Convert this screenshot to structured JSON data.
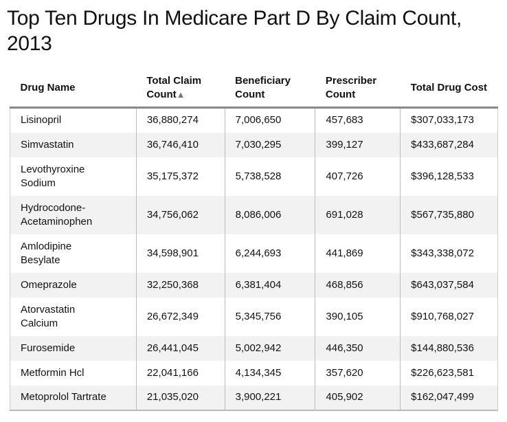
{
  "title": "Top Ten Drugs In Medicare Part D By Claim Count, 2013",
  "sort_indicator": "▲",
  "chart_data": {
    "type": "table",
    "title": "Top Ten Drugs In Medicare Part D By Claim Count, 2013",
    "columns": [
      "Drug Name",
      "Total Claim Count",
      "Beneficiary Count",
      "Prescriber Count",
      "Total Drug Cost"
    ],
    "sorted_column": "Total Claim Count",
    "rows": [
      {
        "drug": "Lisinopril",
        "claims": "36,880,274",
        "beneficiaries": "7,006,650",
        "prescribers": "457,683",
        "cost": "$307,033,173"
      },
      {
        "drug": "Simvastatin",
        "claims": "36,746,410",
        "beneficiaries": "7,030,295",
        "prescribers": "399,127",
        "cost": "$433,687,284"
      },
      {
        "drug": "Levothyroxine Sodium",
        "claims": "35,175,372",
        "beneficiaries": "5,738,528",
        "prescribers": "407,726",
        "cost": "$396,128,533"
      },
      {
        "drug": "Hydrocodone-Acetaminophen",
        "claims": "34,756,062",
        "beneficiaries": "8,086,006",
        "prescribers": "691,028",
        "cost": "$567,735,880"
      },
      {
        "drug": "Amlodipine Besylate",
        "claims": "34,598,901",
        "beneficiaries": "6,244,693",
        "prescribers": "441,869",
        "cost": "$343,338,072"
      },
      {
        "drug": "Omeprazole",
        "claims": "32,250,368",
        "beneficiaries": "6,381,404",
        "prescribers": "468,856",
        "cost": "$643,037,584"
      },
      {
        "drug": "Atorvastatin Calcium",
        "claims": "26,672,349",
        "beneficiaries": "5,345,756",
        "prescribers": "390,105",
        "cost": "$910,768,027"
      },
      {
        "drug": "Furosemide",
        "claims": "26,441,045",
        "beneficiaries": "5,002,942",
        "prescribers": "446,350",
        "cost": "$144,880,536"
      },
      {
        "drug": "Metformin Hcl",
        "claims": "22,041,166",
        "beneficiaries": "4,134,345",
        "prescribers": "357,620",
        "cost": "$226,623,581"
      },
      {
        "drug": "Metoprolol Tartrate",
        "claims": "21,035,020",
        "beneficiaries": "3,900,221",
        "prescribers": "405,902",
        "cost": "$162,047,499"
      }
    ]
  }
}
